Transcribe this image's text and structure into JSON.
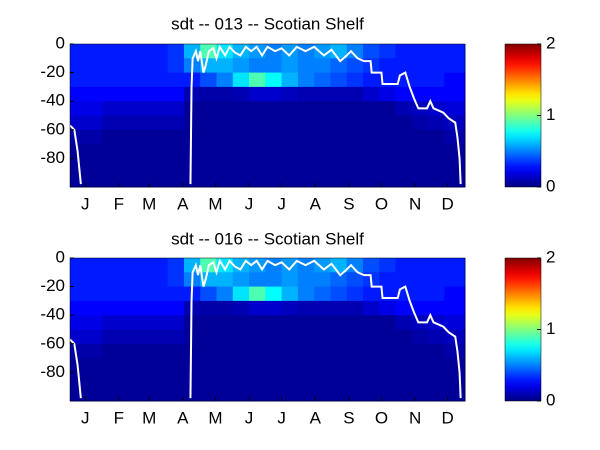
{
  "chart_data": [
    {
      "type": "heatmap",
      "title": "sdt -- 013 -- Scotian Shelf",
      "xlim": [
        1,
        365
      ],
      "ylim": [
        -100,
        0
      ],
      "xticks": [
        {
          "value": 15,
          "label": "J"
        },
        {
          "value": 46,
          "label": "F"
        },
        {
          "value": 74,
          "label": "M"
        },
        {
          "value": 105,
          "label": "A"
        },
        {
          "value": 135,
          "label": "M"
        },
        {
          "value": 166,
          "label": "J"
        },
        {
          "value": 196,
          "label": "J"
        },
        {
          "value": 227,
          "label": "A"
        },
        {
          "value": 258,
          "label": "S"
        },
        {
          "value": 288,
          "label": "O"
        },
        {
          "value": 319,
          "label": "N"
        },
        {
          "value": 349,
          "label": "D"
        }
      ],
      "yticks": [
        0,
        -20,
        -40,
        -60,
        -80
      ],
      "xbins": [
        1,
        16,
        31,
        46,
        61,
        76,
        91,
        106,
        121,
        136,
        151,
        166,
        181,
        196,
        211,
        226,
        241,
        256,
        271,
        286,
        301,
        316,
        331,
        346,
        365
      ],
      "ybins": [
        0,
        -10,
        -20,
        -30,
        -40,
        -50,
        -60,
        -70,
        -80,
        -90,
        -100
      ],
      "z": [
        [
          0.3,
          0.3,
          0.3,
          0.3,
          0.3,
          0.3,
          0.35,
          0.6,
          0.9,
          0.7,
          0.6,
          0.55,
          0.5,
          0.55,
          0.5,
          0.55,
          0.6,
          0.5,
          0.4,
          0.35,
          0.3,
          0.3,
          0.3,
          0.3
        ],
        [
          0.3,
          0.3,
          0.3,
          0.3,
          0.3,
          0.3,
          0.35,
          0.5,
          0.6,
          0.6,
          0.55,
          0.5,
          0.5,
          0.55,
          0.5,
          0.5,
          0.45,
          0.4,
          0.35,
          0.3,
          0.3,
          0.3,
          0.3,
          0.3
        ],
        [
          0.3,
          0.3,
          0.3,
          0.3,
          0.3,
          0.3,
          0.3,
          0.3,
          0.4,
          0.5,
          0.7,
          0.9,
          0.75,
          0.6,
          0.5,
          0.45,
          0.4,
          0.35,
          0.3,
          0.3,
          0.3,
          0.3,
          0.3,
          0.25
        ],
        [
          0.25,
          0.25,
          0.25,
          0.25,
          0.25,
          0.25,
          0.25,
          0.1,
          0.08,
          0.08,
          0.1,
          0.15,
          0.15,
          0.12,
          0.1,
          0.1,
          0.1,
          0.1,
          0.15,
          0.2,
          0.25,
          0.25,
          0.25,
          0.25
        ],
        [
          0.2,
          0.2,
          0.15,
          0.15,
          0.15,
          0.15,
          0.15,
          0.05,
          0.05,
          0.05,
          0.05,
          0.05,
          0.05,
          0.05,
          0.05,
          0.05,
          0.05,
          0.05,
          0.05,
          0.05,
          0.1,
          0.12,
          0.15,
          0.18
        ],
        [
          0.15,
          0.15,
          0.1,
          0.1,
          0.1,
          0.1,
          0.1,
          0.05,
          0.05,
          0.05,
          0.05,
          0.05,
          0.05,
          0.05,
          0.05,
          0.05,
          0.05,
          0.05,
          0.05,
          0.05,
          0.05,
          0.08,
          0.1,
          0.12
        ],
        [
          0.08,
          0.08,
          0.05,
          0.05,
          0.05,
          0.05,
          0.05,
          0.05,
          0.05,
          0.05,
          0.05,
          0.05,
          0.05,
          0.05,
          0.05,
          0.05,
          0.05,
          0.05,
          0.05,
          0.05,
          0.05,
          0.05,
          0.05,
          0.08
        ],
        [
          0.05,
          0.05,
          0.05,
          0.05,
          0.05,
          0.05,
          0.05,
          0.05,
          0.05,
          0.05,
          0.05,
          0.05,
          0.05,
          0.05,
          0.05,
          0.05,
          0.05,
          0.05,
          0.05,
          0.05,
          0.05,
          0.05,
          0.05,
          0.05
        ],
        [
          0.05,
          0.05,
          0.05,
          0.05,
          0.05,
          0.05,
          0.05,
          0.05,
          0.05,
          0.05,
          0.05,
          0.05,
          0.05,
          0.05,
          0.05,
          0.05,
          0.05,
          0.05,
          0.05,
          0.05,
          0.05,
          0.05,
          0.05,
          0.05
        ],
        [
          0.05,
          0.05,
          0.05,
          0.05,
          0.05,
          0.05,
          0.05,
          0.05,
          0.05,
          0.05,
          0.05,
          0.05,
          0.05,
          0.05,
          0.05,
          0.05,
          0.05,
          0.05,
          0.05,
          0.05,
          0.05,
          0.05,
          0.05,
          0.05
        ]
      ],
      "clim": [
        0,
        2
      ],
      "cticks": [
        0,
        1,
        2
      ],
      "line": {
        "color": "#ffffff",
        "x": [
          1,
          5,
          8,
          11,
          null,
          112,
          113,
          114,
          117,
          119,
          121,
          124,
          126,
          129,
          133,
          136,
          139,
          144,
          148,
          153,
          158,
          163,
          168,
          173,
          178,
          183,
          190,
          196,
          203,
          210,
          218,
          226,
          235,
          242,
          250,
          256,
          260,
          266,
          272,
          278,
          279,
          288,
          289,
          303,
          305,
          310,
          314,
          318,
          322,
          330,
          333,
          336,
          345,
          350,
          356,
          358,
          360,
          361
        ],
        "y": [
          -57,
          -60,
          -75,
          -98,
          null,
          -98,
          -30,
          -10,
          -5,
          -12,
          -5,
          -20,
          -15,
          -5,
          -3,
          -10,
          -2,
          -8,
          -2,
          -6,
          -8,
          -2,
          -5,
          -2,
          -8,
          -2,
          -5,
          -3,
          -8,
          -2,
          -5,
          -2,
          -8,
          -4,
          -12,
          -8,
          -5,
          -10,
          -12,
          -12,
          -20,
          -20,
          -28,
          -28,
          -22,
          -20,
          -30,
          -38,
          -45,
          -45,
          -40,
          -45,
          -48,
          -52,
          -55,
          -65,
          -80,
          -98
        ]
      }
    },
    {
      "type": "heatmap",
      "title": "sdt -- 016 -- Scotian Shelf",
      "xlim": [
        1,
        365
      ],
      "ylim": [
        -100,
        0
      ],
      "xticks": [
        {
          "value": 15,
          "label": "J"
        },
        {
          "value": 46,
          "label": "F"
        },
        {
          "value": 74,
          "label": "M"
        },
        {
          "value": 105,
          "label": "A"
        },
        {
          "value": 135,
          "label": "M"
        },
        {
          "value": 166,
          "label": "J"
        },
        {
          "value": 196,
          "label": "J"
        },
        {
          "value": 227,
          "label": "A"
        },
        {
          "value": 258,
          "label": "S"
        },
        {
          "value": 288,
          "label": "O"
        },
        {
          "value": 319,
          "label": "N"
        },
        {
          "value": 349,
          "label": "D"
        }
      ],
      "yticks": [
        0,
        -20,
        -40,
        -60,
        -80
      ],
      "xbins": [
        1,
        16,
        31,
        46,
        61,
        76,
        91,
        106,
        121,
        136,
        151,
        166,
        181,
        196,
        211,
        226,
        241,
        256,
        271,
        286,
        301,
        316,
        331,
        346,
        365
      ],
      "ybins": [
        0,
        -10,
        -20,
        -30,
        -40,
        -50,
        -60,
        -70,
        -80,
        -90,
        -100
      ],
      "z": [
        [
          0.3,
          0.3,
          0.3,
          0.3,
          0.3,
          0.3,
          0.35,
          0.6,
          0.9,
          0.7,
          0.6,
          0.55,
          0.5,
          0.55,
          0.5,
          0.55,
          0.6,
          0.5,
          0.4,
          0.35,
          0.3,
          0.3,
          0.3,
          0.3
        ],
        [
          0.3,
          0.3,
          0.3,
          0.3,
          0.3,
          0.3,
          0.35,
          0.5,
          0.6,
          0.6,
          0.55,
          0.5,
          0.5,
          0.55,
          0.5,
          0.5,
          0.45,
          0.4,
          0.35,
          0.3,
          0.3,
          0.3,
          0.3,
          0.3
        ],
        [
          0.3,
          0.3,
          0.3,
          0.3,
          0.3,
          0.3,
          0.3,
          0.3,
          0.4,
          0.5,
          0.7,
          0.9,
          0.75,
          0.6,
          0.5,
          0.45,
          0.4,
          0.35,
          0.3,
          0.3,
          0.3,
          0.3,
          0.3,
          0.25
        ],
        [
          0.25,
          0.25,
          0.25,
          0.25,
          0.25,
          0.25,
          0.25,
          0.1,
          0.08,
          0.08,
          0.1,
          0.15,
          0.15,
          0.12,
          0.1,
          0.1,
          0.1,
          0.1,
          0.15,
          0.2,
          0.25,
          0.25,
          0.25,
          0.25
        ],
        [
          0.2,
          0.2,
          0.15,
          0.15,
          0.15,
          0.15,
          0.15,
          0.05,
          0.05,
          0.05,
          0.05,
          0.05,
          0.05,
          0.05,
          0.05,
          0.05,
          0.05,
          0.05,
          0.05,
          0.05,
          0.1,
          0.12,
          0.15,
          0.18
        ],
        [
          0.15,
          0.15,
          0.1,
          0.1,
          0.1,
          0.1,
          0.1,
          0.05,
          0.05,
          0.05,
          0.05,
          0.05,
          0.05,
          0.05,
          0.05,
          0.05,
          0.05,
          0.05,
          0.05,
          0.05,
          0.05,
          0.08,
          0.1,
          0.12
        ],
        [
          0.08,
          0.08,
          0.05,
          0.05,
          0.05,
          0.05,
          0.05,
          0.05,
          0.05,
          0.05,
          0.05,
          0.05,
          0.05,
          0.05,
          0.05,
          0.05,
          0.05,
          0.05,
          0.05,
          0.05,
          0.05,
          0.05,
          0.05,
          0.08
        ],
        [
          0.05,
          0.05,
          0.05,
          0.05,
          0.05,
          0.05,
          0.05,
          0.05,
          0.05,
          0.05,
          0.05,
          0.05,
          0.05,
          0.05,
          0.05,
          0.05,
          0.05,
          0.05,
          0.05,
          0.05,
          0.05,
          0.05,
          0.05,
          0.05
        ],
        [
          0.05,
          0.05,
          0.05,
          0.05,
          0.05,
          0.05,
          0.05,
          0.05,
          0.05,
          0.05,
          0.05,
          0.05,
          0.05,
          0.05,
          0.05,
          0.05,
          0.05,
          0.05,
          0.05,
          0.05,
          0.05,
          0.05,
          0.05,
          0.05
        ],
        [
          0.05,
          0.05,
          0.05,
          0.05,
          0.05,
          0.05,
          0.05,
          0.05,
          0.05,
          0.05,
          0.05,
          0.05,
          0.05,
          0.05,
          0.05,
          0.05,
          0.05,
          0.05,
          0.05,
          0.05,
          0.05,
          0.05,
          0.05,
          0.05
        ]
      ],
      "clim": [
        0,
        2
      ],
      "cticks": [
        0,
        1,
        2
      ],
      "line": {
        "color": "#ffffff",
        "x": [
          1,
          5,
          8,
          11,
          null,
          112,
          113,
          114,
          117,
          119,
          121,
          124,
          126,
          129,
          133,
          136,
          139,
          144,
          148,
          153,
          158,
          163,
          168,
          173,
          178,
          183,
          190,
          196,
          203,
          210,
          218,
          226,
          235,
          242,
          250,
          256,
          260,
          266,
          272,
          278,
          279,
          288,
          289,
          303,
          305,
          310,
          314,
          318,
          322,
          330,
          333,
          336,
          345,
          350,
          356,
          358,
          360,
          361
        ],
        "y": [
          -57,
          -60,
          -75,
          -98,
          null,
          -98,
          -30,
          -10,
          -5,
          -12,
          -5,
          -20,
          -15,
          -5,
          -3,
          -10,
          -2,
          -8,
          -2,
          -6,
          -8,
          -2,
          -5,
          -2,
          -8,
          -2,
          -5,
          -3,
          -8,
          -2,
          -5,
          -2,
          -8,
          -4,
          -12,
          -8,
          -5,
          -10,
          -12,
          -12,
          -20,
          -20,
          -28,
          -28,
          -22,
          -20,
          -30,
          -38,
          -45,
          -45,
          -40,
          -45,
          -48,
          -52,
          -55,
          -65,
          -80,
          -98
        ]
      }
    }
  ]
}
